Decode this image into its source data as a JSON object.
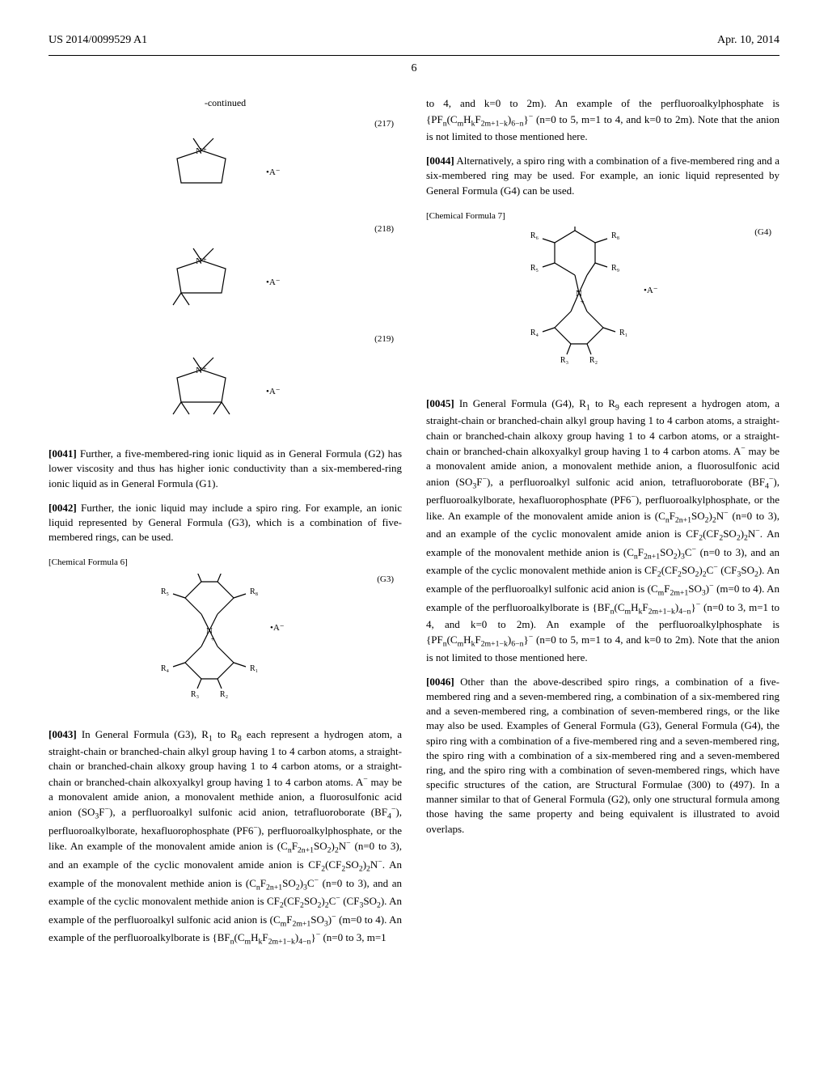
{
  "header": {
    "left": "US 2014/0099529 A1",
    "right": "Apr. 10, 2014"
  },
  "page_number": "6",
  "left_column": {
    "continued": "-continued",
    "structures_217_219": [
      {
        "label": "(217)"
      },
      {
        "label": "(218)"
      },
      {
        "label": "(219)"
      }
    ],
    "para_0041": {
      "num": "[0041]",
      "text": "Further, a five-membered-ring ionic liquid as in General Formula (G2) has lower viscosity and thus has higher ionic conductivity than a six-membered-ring ionic liquid as in General Formula (G1)."
    },
    "para_0042": {
      "num": "[0042]",
      "text": "Further, the ionic liquid may include a spiro ring. For example, an ionic liquid represented by General Formula (G3), which is a combination of five-membered rings, can be used."
    },
    "chem_formula_6": "[Chemical Formula 6]",
    "g3_label": "(G3)",
    "g3_substituents": [
      "R₁",
      "R₂",
      "R₃",
      "R₄",
      "R₅",
      "R₆",
      "R₇",
      "R₈"
    ],
    "para_0043": {
      "num": "[0043]",
      "text_html": "In General Formula (G3), R<sub>1</sub> to R<sub>8</sub> each represent a hydrogen atom, a straight-chain or branched-chain alkyl group having 1 to 4 carbon atoms, a straight-chain or branched-chain alkoxy group having 1 to 4 carbon atoms, or a straight-chain or branched-chain alkoxyalkyl group having 1 to 4 carbon atoms. A<sup>−</sup> may be a monovalent amide anion, a monovalent methide anion, a fluorosulfonic acid anion (SO<sub>3</sub>F<sup>−</sup>), a perfluoroalkyl sulfonic acid anion, tetrafluoroborate (BF<sub>4</sub><sup>−</sup>), perfluoroalkylborate, hexafluorophosphate (PF6<sup>−</sup>), perfluoroalkylphosphate, or the like. An example of the monovalent amide anion is (C<sub>n</sub>F<sub>2n+1</sub>SO<sub>2</sub>)<sub>2</sub>N<sup>−</sup> (n=0 to 3), and an example of the cyclic monovalent amide anion is CF<sub>2</sub>(CF<sub>2</sub>SO<sub>2</sub>)<sub>2</sub>N<sup>−</sup>. An example of the monovalent methide anion is (C<sub>n</sub>F<sub>2n+1</sub>SO<sub>2</sub>)<sub>3</sub>C<sup>−</sup> (n=0 to 3), and an example of the cyclic monovalent methide anion is CF<sub>2</sub>(CF<sub>2</sub>SO<sub>2</sub>)<sub>2</sub>C<sup>−</sup> (CF<sub>3</sub>SO<sub>2</sub>). An example of the perfluoroalkyl sulfonic acid anion is (C<sub>m</sub>F<sub>2m+1</sub>SO<sub>3</sub>)<sup>−</sup> (m=0 to 4). An example of the perfluoroalkylborate is {BF<sub>n</sub>(C<sub>m</sub>H<sub>k</sub>F<sub>2m+1−k</sub>)<sub>4−n</sub>}<sup>−</sup> (n=0 to 3, m=1"
    }
  },
  "right_column": {
    "para_0043_cont": {
      "text_html": "to 4, and k=0 to 2m). An example of the perfluoroalkylphosphate is {PF<sub>n</sub>(C<sub>m</sub>H<sub>k</sub>F<sub>2m+1−k</sub>)<sub>6−n</sub>}<sup>−</sup> (n=0 to 5, m=1 to 4, and k=0 to 2m). Note that the anion is not limited to those mentioned here."
    },
    "para_0044": {
      "num": "[0044]",
      "text": "Alternatively, a spiro ring with a combination of a five-membered ring and a six-membered ring may be used. For example, an ionic liquid represented by General Formula (G4) can be used."
    },
    "chem_formula_7": "[Chemical Formula 7]",
    "g4_label": "(G4)",
    "g4_substituents": [
      "R₁",
      "R₂",
      "R₃",
      "R₄",
      "R₅",
      "R₆",
      "R₇",
      "R₈",
      "R₉"
    ],
    "para_0045": {
      "num": "[0045]",
      "text_html": "In General Formula (G4), R<sub>1</sub> to R<sub>9</sub> each represent a hydrogen atom, a straight-chain or branched-chain alkyl group having 1 to 4 carbon atoms, a straight-chain or branched-chain alkoxy group having 1 to 4 carbon atoms, or a straight-chain or branched-chain alkoxyalkyl group having 1 to 4 carbon atoms. A<sup>−</sup> may be a monovalent amide anion, a monovalent methide anion, a fluorosulfonic acid anion (SO<sub>3</sub>F<sup>−</sup>), a perfluoroalkyl sulfonic acid anion, tetrafluoroborate (BF<sub>4</sub><sup>−</sup>), perfluoroalkylborate, hexafluorophosphate (PF6<sup>−</sup>), perfluoroalkylphosphate, or the like. An example of the monovalent amide anion is (C<sub>n</sub>F<sub>2n+1</sub>SO<sub>2</sub>)<sub>2</sub>N<sup>−</sup> (n=0 to 3), and an example of the cyclic monovalent amide anion is CF<sub>2</sub>(CF<sub>2</sub>SO<sub>2</sub>)<sub>2</sub>N<sup>−</sup>. An example of the monovalent methide anion is (C<sub>n</sub>F<sub>2n+1</sub>SO<sub>2</sub>)<sub>3</sub>C<sup>−</sup> (n=0 to 3), and an example of the cyclic monovalent methide anion is CF<sub>2</sub>(CF<sub>2</sub>SO<sub>2</sub>)<sub>2</sub>C<sup>−</sup> (CF<sub>3</sub>SO<sub>2</sub>). An example of the perfluoroalkyl sulfonic acid anion is (C<sub>m</sub>F<sub>2m+1</sub>SO<sub>3</sub>)<sup>−</sup> (m=0 to 4). An example of the perfluoroalkylborate is {BF<sub>n</sub>(C<sub>m</sub>H<sub>k</sub>F<sub>2m+1−k</sub>)<sub>4−n</sub>}<sup>−</sup> (n=0 to 3, m=1 to 4, and k=0 to 2m). An example of the perfluoroalkylphosphate is {PF<sub>n</sub>(C<sub>m</sub>H<sub>k</sub>F<sub>2m+1−k</sub>)<sub>6−n</sub>}<sup>−</sup> (n=0 to 5, m=1 to 4, and k=0 to 2m). Note that the anion is not limited to those mentioned here."
    },
    "para_0046": {
      "num": "[0046]",
      "text": "Other than the above-described spiro rings, a combination of a five-membered ring and a seven-membered ring, a combination of a six-membered ring and a seven-membered ring, a combination of seven-membered rings, or the like may also be used. Examples of General Formula (G3), General Formula (G4), the spiro ring with a combination of a five-membered ring and a seven-membered ring, the spiro ring with a combination of a six-membered ring and a seven-membered ring, and the spiro ring with a combination of seven-membered rings, which have specific structures of the cation, are Structural Formulae (300) to (497). In a manner similar to that of General Formula (G2), only one structural formula among those having the same property and being equivalent is illustrated to avoid overlaps."
    }
  },
  "chem_style": {
    "stroke": "#000000",
    "stroke_width": 1.2,
    "font_family": "Times New Roman",
    "font_size": 11,
    "anion_text": "•A⁻"
  }
}
